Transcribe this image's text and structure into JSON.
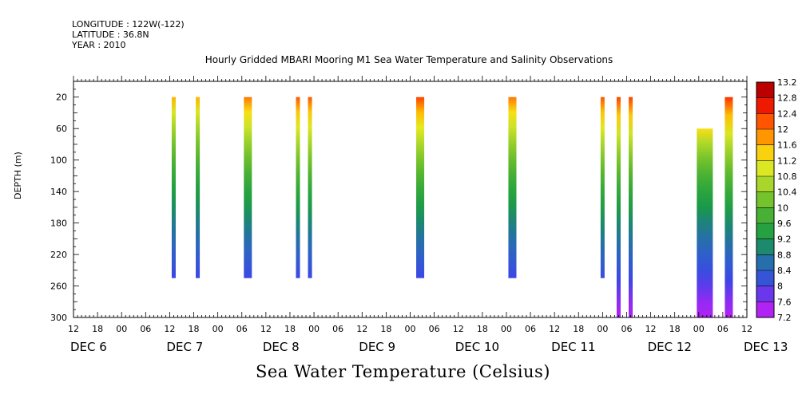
{
  "header": {
    "longitude": "LONGITUDE : 122W(-122)",
    "latitude": "LATITUDE : 36.8N",
    "year": "YEAR : 2010"
  },
  "chart_data": {
    "type": "heatmap",
    "title": "Hourly Gridded MBARI Mooring M1 Sea Water Temperature and Salinity Observations",
    "ylabel": "DEPTH (m)",
    "xlabel": "Sea Water Temperature (Celsius)",
    "y_axis": {
      "range": [
        0,
        300
      ],
      "ticks": [
        20,
        60,
        100,
        140,
        180,
        220,
        260,
        300
      ],
      "inverted": true
    },
    "x_axis": {
      "range_hours": [
        132,
        300
      ],
      "hour_ticks": [
        "12",
        "18",
        "00",
        "06",
        "12",
        "18",
        "00",
        "06",
        "12",
        "18",
        "00",
        "06",
        "12",
        "18",
        "00",
        "06",
        "12",
        "18",
        "00",
        "06",
        "12",
        "18",
        "00",
        "06",
        "12",
        "18",
        "00",
        "06",
        "12"
      ],
      "day_labels": [
        "DEC  6",
        "DEC  7",
        "DEC  8",
        "DEC  9",
        "DEC 10",
        "DEC 11",
        "DEC 12",
        "DEC 13"
      ]
    },
    "colorbar": {
      "labels": [
        "13.2",
        "12.8",
        "12.4",
        "12",
        "11.6",
        "11.2",
        "10.8",
        "10.4",
        "10",
        "9.6",
        "9.2",
        "8.8",
        "8.4",
        "8",
        "7.6",
        "7.2"
      ],
      "min": 7.2,
      "max": 13.2
    },
    "columns": [
      {
        "start": 156.5,
        "end": 157.5,
        "top": 20,
        "bottom": 250,
        "t_top": 11.6,
        "t_bottom": 8.0
      },
      {
        "start": 162.5,
        "end": 163.5,
        "top": 20,
        "bottom": 250,
        "t_top": 11.6,
        "t_bottom": 8.0
      },
      {
        "start": 174.5,
        "end": 176.5,
        "top": 20,
        "bottom": 250,
        "t_top": 12.0,
        "t_bottom": 8.0
      },
      {
        "start": 187.5,
        "end": 188.5,
        "top": 20,
        "bottom": 250,
        "t_top": 12.2,
        "t_bottom": 8.0
      },
      {
        "start": 190.5,
        "end": 191.5,
        "top": 20,
        "bottom": 250,
        "t_top": 12.2,
        "t_bottom": 8.0
      },
      {
        "start": 217.5,
        "end": 219.5,
        "top": 20,
        "bottom": 250,
        "t_top": 12.3,
        "t_bottom": 8.0
      },
      {
        "start": 240.5,
        "end": 242.5,
        "top": 20,
        "bottom": 250,
        "t_top": 12.0,
        "t_bottom": 8.0
      },
      {
        "start": 263.5,
        "end": 264.5,
        "top": 20,
        "bottom": 250,
        "t_top": 12.2,
        "t_bottom": 8.1
      },
      {
        "start": 267.5,
        "end": 268.5,
        "top": 20,
        "bottom": 300,
        "t_top": 12.3,
        "t_bottom": 7.4
      },
      {
        "start": 270.5,
        "end": 271.5,
        "top": 20,
        "bottom": 300,
        "t_top": 12.3,
        "t_bottom": 7.4
      },
      {
        "start": 287.5,
        "end": 291.5,
        "top": 60,
        "bottom": 300,
        "t_top": 11.3,
        "t_bottom": 7.4
      },
      {
        "start": 294.5,
        "end": 296.5,
        "top": 20,
        "bottom": 300,
        "t_top": 12.4,
        "t_bottom": 7.4
      }
    ]
  }
}
